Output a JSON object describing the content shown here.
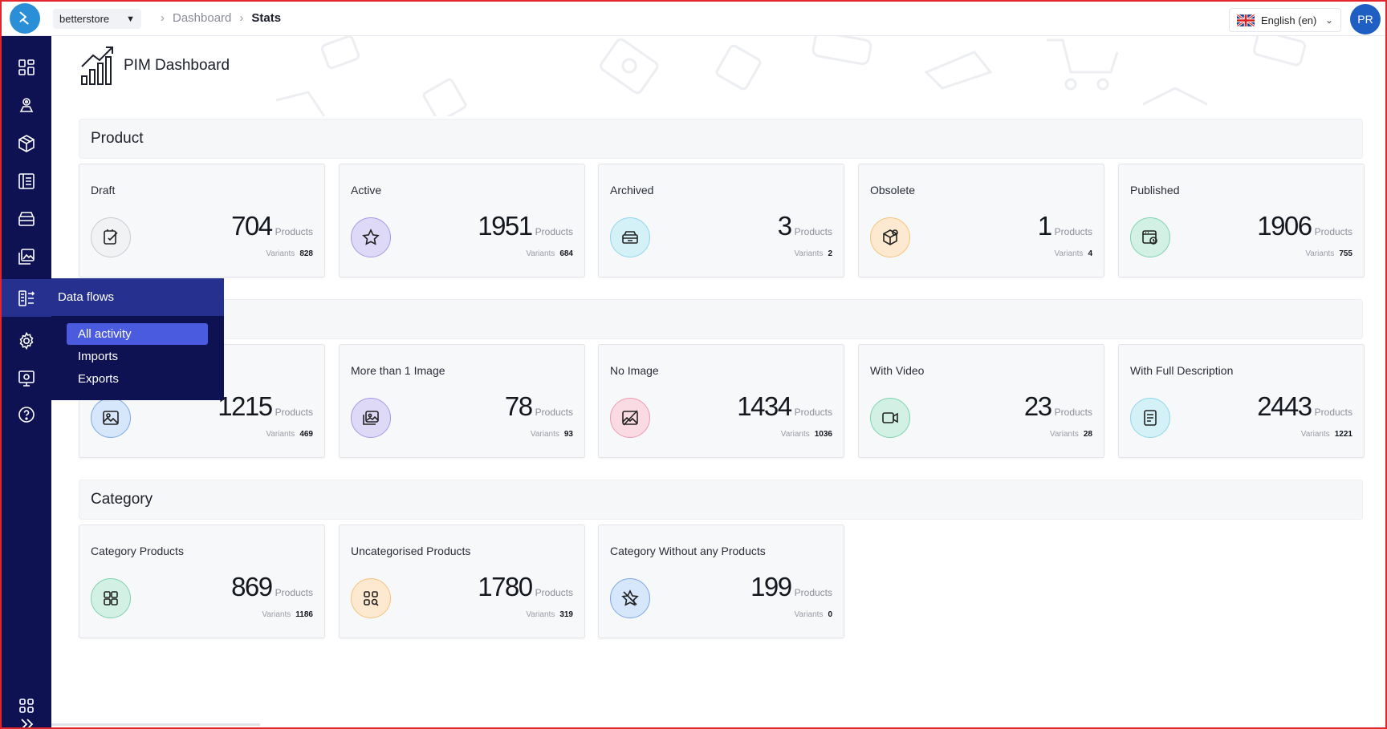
{
  "topbar": {
    "store": "betterstore",
    "breadcrumb": [
      "Dashboard",
      "Stats"
    ],
    "language": "English (en)",
    "avatar": "PR"
  },
  "sidebar": {
    "icons": [
      "dashboard-icon",
      "catalog-icon",
      "product-box-icon",
      "list-icon",
      "archive-icon",
      "media-icon",
      "data-flows-icon",
      "settings-icon",
      "monitor-icon",
      "help-icon",
      "apps-icon",
      "expand-icon"
    ],
    "active": "data-flows-icon"
  },
  "flyout": {
    "title": "Data flows",
    "items": [
      "All activity",
      "Imports",
      "Exports"
    ],
    "selected": "All activity"
  },
  "page": {
    "title": "PIM Dashboard"
  },
  "sections": {
    "product": {
      "title": "Product",
      "cards": [
        {
          "label": "Draft",
          "count": "704",
          "unit": "Products",
          "variants_label": "Variants",
          "variants": "828",
          "icon": "draft-icon",
          "color": "#f1f2f4"
        },
        {
          "label": "Active",
          "count": "1951",
          "unit": "Products",
          "variants_label": "Variants",
          "variants": "684",
          "icon": "star-icon",
          "color": "#ded9f6"
        },
        {
          "label": "Archived",
          "count": "3",
          "unit": "Products",
          "variants_label": "Variants",
          "variants": "2",
          "icon": "archive-box-icon",
          "color": "#d4f1f8"
        },
        {
          "label": "Obsolete",
          "count": "1",
          "unit": "Products",
          "variants_label": "Variants",
          "variants": "4",
          "icon": "obsolete-box-icon",
          "color": "#fde9cf"
        },
        {
          "label": "Published",
          "count": "1906",
          "unit": "Products",
          "variants_label": "Variants",
          "variants": "755",
          "icon": "publish-icon",
          "color": "#d2f1e4"
        }
      ]
    },
    "media": {
      "title": "",
      "cards": [
        {
          "label": "",
          "count": "1215",
          "unit": "Products",
          "variants_label": "Variants",
          "variants": "469",
          "icon": "image-icon",
          "color": "#d6e6fb"
        },
        {
          "label": "More than 1 Image",
          "count": "78",
          "unit": "Products",
          "variants_label": "Variants",
          "variants": "93",
          "icon": "images-icon",
          "color": "#ded9f6"
        },
        {
          "label": "No Image",
          "count": "1434",
          "unit": "Products",
          "variants_label": "Variants",
          "variants": "1036",
          "icon": "no-image-icon",
          "color": "#fadbe4"
        },
        {
          "label": "With Video",
          "count": "23",
          "unit": "Products",
          "variants_label": "Variants",
          "variants": "28",
          "icon": "video-icon",
          "color": "#d2f1e4"
        },
        {
          "label": "With Full Description",
          "count": "2443",
          "unit": "Products",
          "variants_label": "Variants",
          "variants": "1221",
          "icon": "description-icon",
          "color": "#d4f1f8"
        }
      ]
    },
    "category": {
      "title": "Category",
      "cards": [
        {
          "label": "Category Products",
          "count": "869",
          "unit": "Products",
          "variants_label": "Variants",
          "variants": "1186",
          "icon": "grid-icon",
          "color": "#d2f1e4"
        },
        {
          "label": "Uncategorised Products",
          "count": "1780",
          "unit": "Products",
          "variants_label": "Variants",
          "variants": "319",
          "icon": "grid-search-icon",
          "color": "#fde9cf"
        },
        {
          "label": "Category Without any Products",
          "count": "199",
          "unit": "Products",
          "variants_label": "Variants",
          "variants": "0",
          "icon": "star-slash-icon",
          "color": "#d6e6fb"
        }
      ]
    }
  }
}
